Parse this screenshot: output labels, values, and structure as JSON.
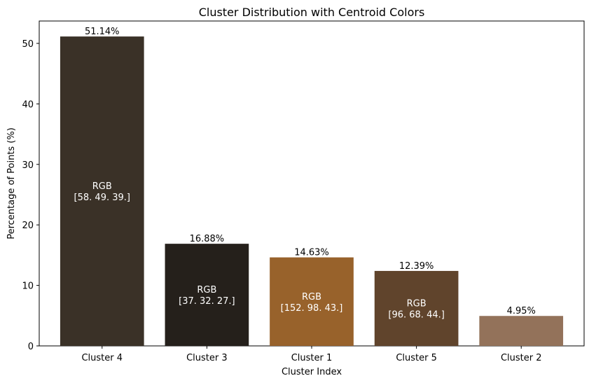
{
  "chart_data": {
    "type": "bar",
    "title": "Cluster Distribution with Centroid Colors",
    "xlabel": "Cluster Index",
    "ylabel": "Percentage of Points (%)",
    "ylim": [
      0,
      53.7
    ],
    "yticks": [
      0,
      10,
      20,
      30,
      40,
      50
    ],
    "grid": false,
    "categories": [
      "Cluster 4",
      "Cluster 3",
      "Cluster 1",
      "Cluster 5",
      "Cluster 2"
    ],
    "values": [
      51.14,
      16.88,
      14.63,
      12.39,
      4.95
    ],
    "value_labels": [
      "51.14%",
      "16.88%",
      "14.63%",
      "12.39%",
      "4.95%"
    ],
    "bar_colors": [
      "#3a3127",
      "#25201b",
      "#98622b",
      "#60442c",
      "#93725a"
    ],
    "rgb_labels": [
      {
        "line1": "RGB",
        "line2": "[58. 49. 39.]"
      },
      {
        "line1": "RGB",
        "line2": "[37. 32. 27.]"
      },
      {
        "line1": "RGB",
        "line2": "[152.  98.  43.]"
      },
      {
        "line1": "RGB",
        "line2": "[96. 68. 44.]"
      },
      null
    ]
  }
}
